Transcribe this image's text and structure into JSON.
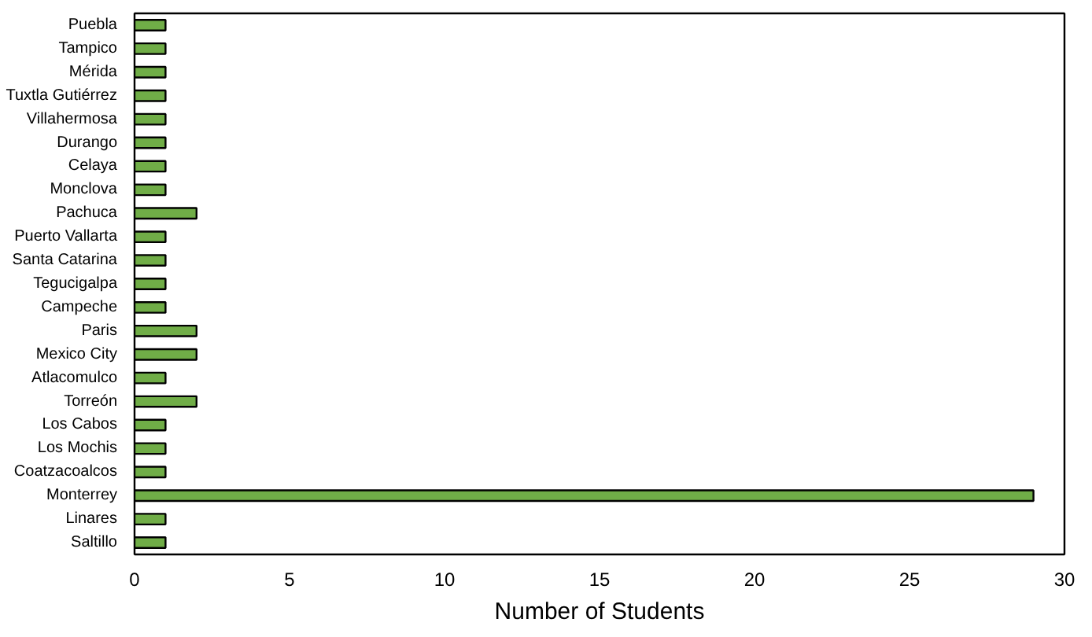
{
  "chart_data": {
    "type": "bar",
    "orientation": "horizontal",
    "xlabel": "Number of Students",
    "categories": [
      "Puebla",
      "Tampico",
      "Mérida",
      "Tuxtla Gutiérrez",
      "Villahermosa",
      "Durango",
      "Celaya",
      "Monclova",
      "Pachuca",
      "Puerto Vallarta",
      "Santa Catarina",
      "Tegucigalpa",
      "Campeche",
      "Paris",
      "Mexico City",
      "Atlacomulco",
      "Torreón",
      "Los Cabos",
      "Los Mochis",
      "Coatzacoalcos",
      "Monterrey",
      "Linares",
      "Saltillo"
    ],
    "values": [
      1,
      1,
      1,
      1,
      1,
      1,
      1,
      1,
      2,
      1,
      1,
      1,
      1,
      2,
      2,
      1,
      2,
      1,
      1,
      1,
      29,
      1,
      1
    ],
    "color": "#70ad47",
    "xlim": [
      0,
      30
    ],
    "xticks": [
      0,
      5,
      10,
      15,
      20,
      25,
      30
    ],
    "grid": false
  }
}
